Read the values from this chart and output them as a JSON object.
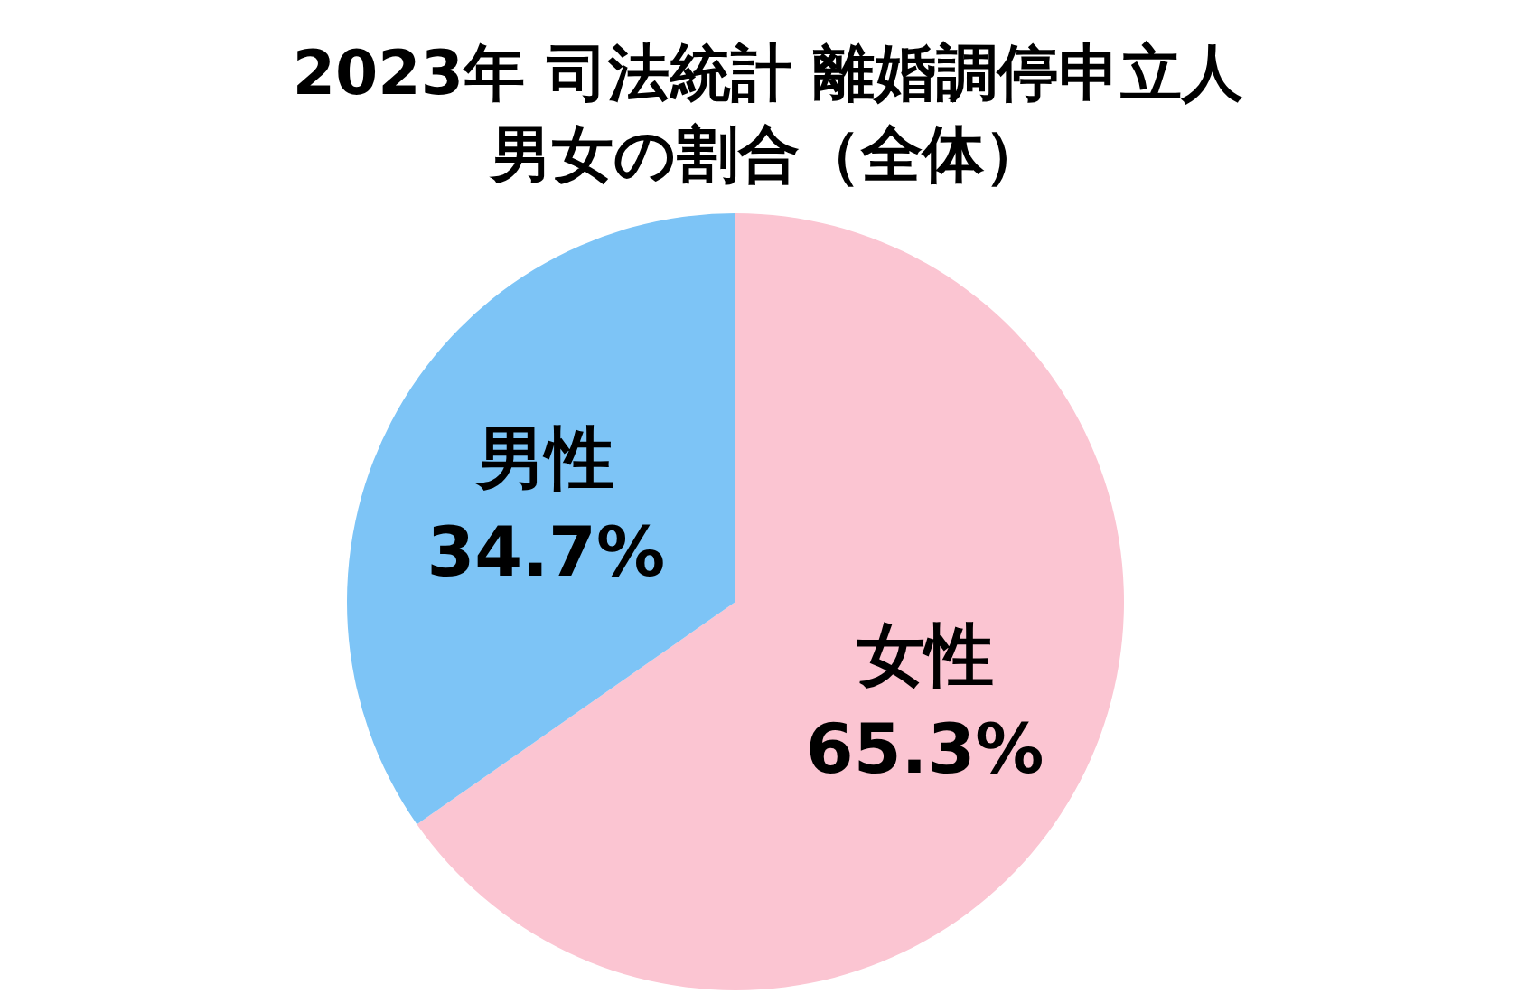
{
  "chart_data": {
    "type": "pie",
    "title": "2023年 司法統計 離婚調停申立人",
    "subtitle": "男女の割合（全体）",
    "categories": [
      "女性",
      "男性"
    ],
    "values": [
      65.3,
      34.7
    ],
    "value_labels": [
      "65.3%",
      "34.7%"
    ],
    "colors": [
      "#fbc5d2",
      "#7dc4f6"
    ]
  }
}
